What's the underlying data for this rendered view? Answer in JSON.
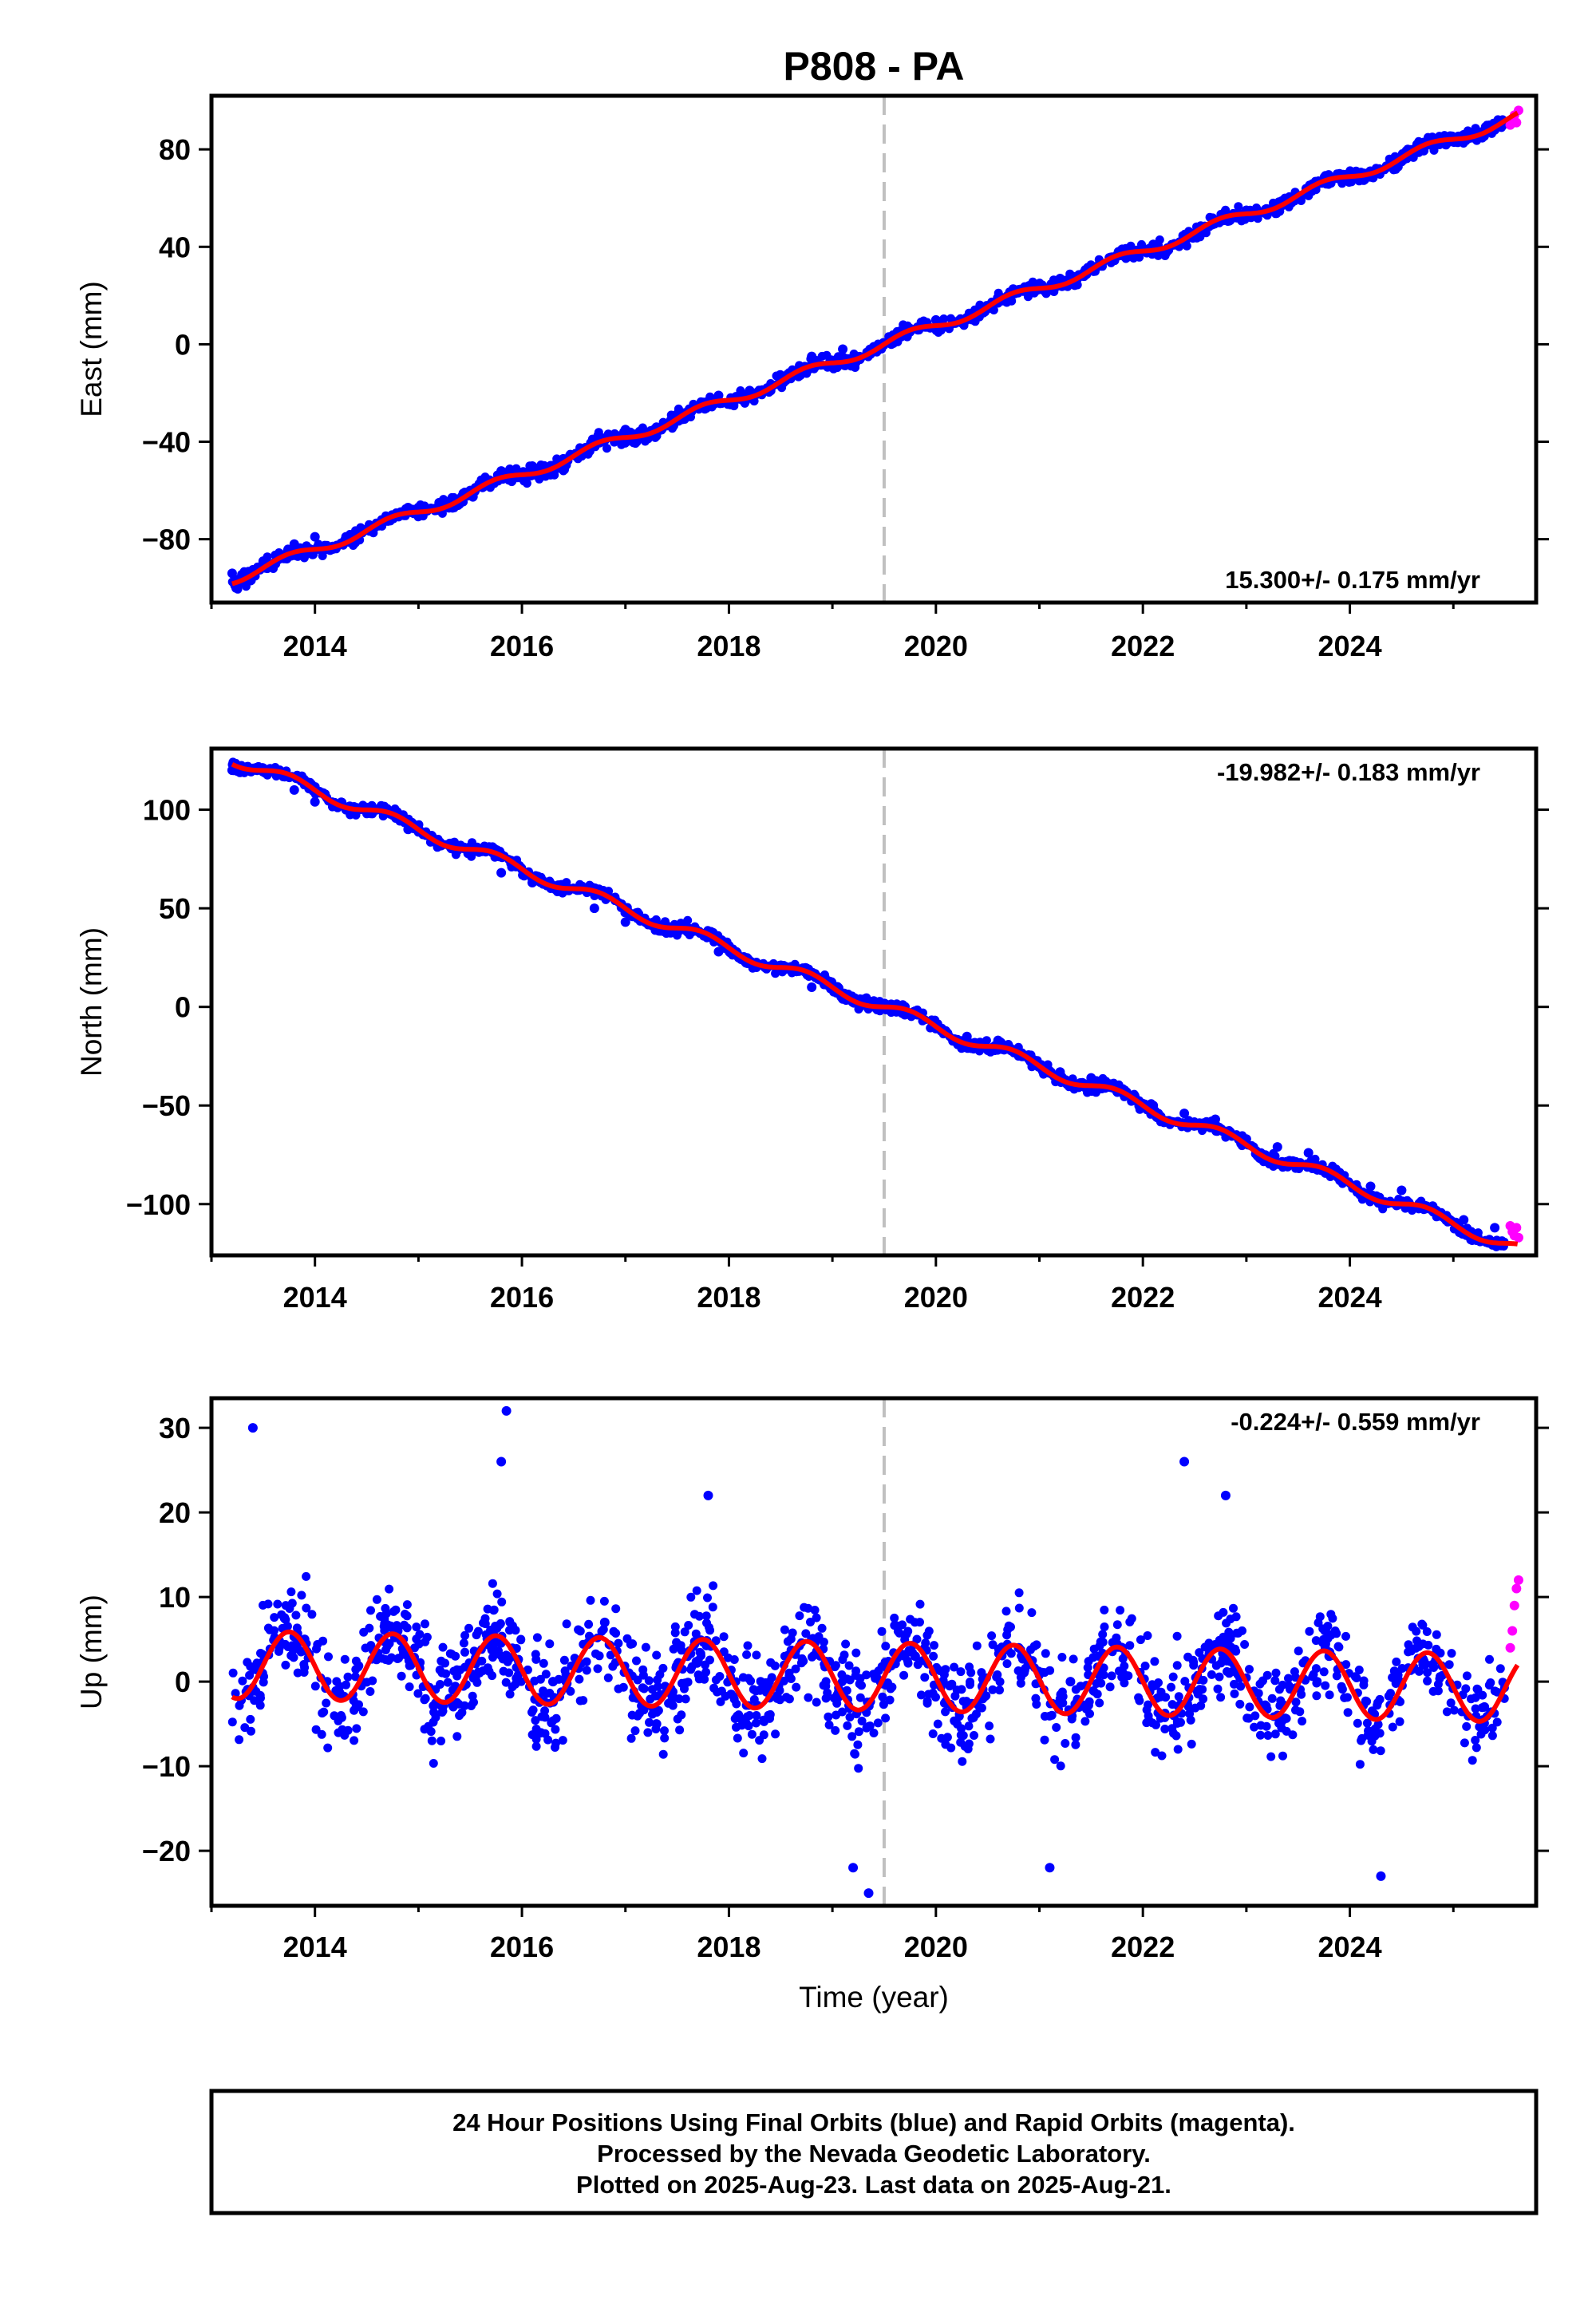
{
  "title": "P808 - PA",
  "colors": {
    "final_orbits": "#0000ff",
    "rapid_orbits": "#ff00ff",
    "model": "#ff0000",
    "marker_line": "#c0c0c0",
    "frame": "#000000"
  },
  "xlabel": "Time (year)",
  "footer": {
    "lines": [
      "24 Hour Positions Using Final Orbits (blue) and Rapid Orbits (magenta).",
      "Processed by the Nevada Geodetic Laboratory.",
      "Plotted on 2025-Aug-23. Last data on 2025-Aug-21."
    ]
  },
  "chart_data": [
    {
      "type": "scatter",
      "ylabel": "East (mm)",
      "xlim": [
        2013.0,
        2025.8
      ],
      "ylim": [
        -106,
        102
      ],
      "xticks": [
        2014,
        2016,
        2018,
        2020,
        2022,
        2024
      ],
      "xtick_labels": [
        "2014",
        "2016",
        "2018",
        "2020",
        "2022",
        "2024"
      ],
      "yticks": [
        -80,
        -40,
        0,
        40,
        80
      ],
      "ytick_labels": [
        "−80",
        "−40",
        "0",
        "40",
        "80"
      ],
      "rate_label": "15.300+/- 0.175 mm/yr",
      "rate_position": "bottom-right",
      "vertical_marker_x": 2019.5,
      "series": [
        {
          "style": "points",
          "color": "final_orbits",
          "x": [
            2013.2,
            2013.5,
            2013.8,
            2014.0,
            2014.3,
            2014.6,
            2014.9,
            2015.2,
            2015.5,
            2015.8,
            2016.1,
            2016.4,
            2016.7,
            2017.0,
            2017.3,
            2017.6,
            2017.9,
            2018.2,
            2018.5,
            2018.8,
            2019.1,
            2019.4,
            2019.7,
            2020.0,
            2020.3,
            2020.6,
            2020.9,
            2021.2,
            2021.5,
            2021.8,
            2022.1,
            2022.4,
            2022.7,
            2023.0,
            2023.3,
            2023.6,
            2023.9,
            2024.2,
            2024.5,
            2024.8,
            2025.1,
            2025.4
          ],
          "y": [
            -94,
            -89,
            -82,
            -79,
            -79,
            -74,
            -67,
            -65,
            -60,
            -52,
            -50,
            -47,
            -40,
            -35,
            -34,
            -28,
            -21,
            -19,
            -13,
            -5,
            -2,
            -1,
            6,
            10,
            11,
            17,
            24,
            27,
            32,
            39,
            41,
            43,
            51,
            55,
            57,
            63,
            70,
            71,
            75,
            82,
            86,
            88
          ]
        },
        {
          "style": "points",
          "color": "rapid_orbits",
          "x": [
            2025.55,
            2025.57,
            2025.59,
            2025.61,
            2025.63
          ],
          "y": [
            90,
            92,
            94,
            91,
            96
          ]
        },
        {
          "style": "line",
          "color": "model",
          "trend": {
            "x0": 2019.5,
            "y0": 0.0,
            "slope": 15.3
          },
          "seasonal_amplitude": 2.0
        }
      ]
    },
    {
      "type": "scatter",
      "ylabel": "North (mm)",
      "xlim": [
        2013.0,
        2025.8
      ],
      "ylim": [
        -126,
        131
      ],
      "xticks": [
        2014,
        2016,
        2018,
        2020,
        2022,
        2024
      ],
      "xtick_labels": [
        "2014",
        "2016",
        "2018",
        "2020",
        "2022",
        "2024"
      ],
      "yticks": [
        -100,
        -50,
        0,
        50,
        100
      ],
      "ytick_labels": [
        "−100",
        "−50",
        "0",
        "50",
        "100"
      ],
      "rate_label": "-19.982+/- 0.183 mm/yr",
      "rate_position": "top-right",
      "vertical_marker_x": 2019.5,
      "series": [
        {
          "style": "points",
          "color": "final_orbits",
          "x": [
            2013.2,
            2013.5,
            2013.8,
            2014.0,
            2014.3,
            2014.6,
            2014.9,
            2015.2,
            2015.5,
            2015.8,
            2016.1,
            2016.4,
            2016.7,
            2017.0,
            2017.3,
            2017.6,
            2017.9,
            2018.2,
            2018.5,
            2018.8,
            2019.1,
            2019.4,
            2019.7,
            2020.0,
            2020.3,
            2020.6,
            2020.9,
            2021.2,
            2021.5,
            2021.8,
            2022.1,
            2022.4,
            2022.7,
            2023.0,
            2023.3,
            2023.6,
            2023.9,
            2024.2,
            2024.5,
            2024.8,
            2025.1,
            2025.4
          ],
          "y": [
            120,
            121,
            110,
            104,
            100,
            100,
            90,
            83,
            80,
            68,
            63,
            61,
            50,
            43,
            40,
            38,
            28,
            22,
            19,
            10,
            4,
            3,
            -4,
            -11,
            -15,
            -17,
            -26,
            -33,
            -36,
            -42,
            -50,
            -54,
            -57,
            -67,
            -71,
            -74,
            -84,
            -91,
            -93,
            -101,
            -108,
            -112
          ]
        },
        {
          "style": "points",
          "color": "rapid_orbits",
          "x": [
            2025.55,
            2025.57,
            2025.59,
            2025.61,
            2025.63
          ],
          "y": [
            -111,
            -114,
            -116,
            -112,
            -117
          ]
        },
        {
          "style": "line",
          "color": "model",
          "trend": {
            "x0": 2019.5,
            "y0": 0.0,
            "slope": -19.982
          },
          "seasonal_amplitude": 3.0
        }
      ]
    },
    {
      "type": "scatter",
      "ylabel": "Up (mm)",
      "xlim": [
        2013.0,
        2025.8
      ],
      "ylim": [
        -26.5,
        33.5
      ],
      "xticks": [
        2014,
        2016,
        2018,
        2020,
        2022,
        2024
      ],
      "xtick_labels": [
        "2014",
        "2016",
        "2018",
        "2020",
        "2022",
        "2024"
      ],
      "yticks": [
        -20,
        -10,
        0,
        10,
        20,
        30
      ],
      "ytick_labels": [
        "−20",
        "−10",
        "0",
        "10",
        "20",
        "30"
      ],
      "rate_label": "-0.224+/- 0.559 mm/yr",
      "rate_position": "top-right",
      "vertical_marker_x": 2019.5,
      "series": [
        {
          "style": "points",
          "color": "final_orbits",
          "x": [
            2013.4,
            2013.9,
            2014.4,
            2014.8,
            2015.3,
            2015.8,
            2015.85,
            2016.3,
            2016.8,
            2017.3,
            2017.8,
            2018.3,
            2018.8,
            2019.2,
            2019.35,
            2019.8,
            2020.3,
            2020.8,
            2021.1,
            2021.3,
            2021.8,
            2022.3,
            2022.4,
            2022.8,
            2023.3,
            2023.8,
            2024.3,
            2024.8,
            2025.3
          ],
          "y": [
            30,
            5,
            -3,
            6,
            -2,
            26,
            32,
            0,
            7,
            -5,
            22,
            -1,
            5,
            -22,
            -25,
            3,
            -3,
            4,
            -22,
            0,
            4,
            -4,
            26,
            22,
            -4,
            3,
            -23,
            2,
            -3
          ]
        },
        {
          "style": "points",
          "color": "rapid_orbits",
          "x": [
            2025.55,
            2025.57,
            2025.59,
            2025.61,
            2025.63
          ],
          "y": [
            4,
            6,
            9,
            11,
            12
          ]
        },
        {
          "style": "line",
          "color": "model",
          "trend": {
            "x0": 2013.2,
            "y0": 2.0,
            "slope": -0.224
          },
          "seasonal_amplitude": 4.0
        }
      ]
    }
  ]
}
